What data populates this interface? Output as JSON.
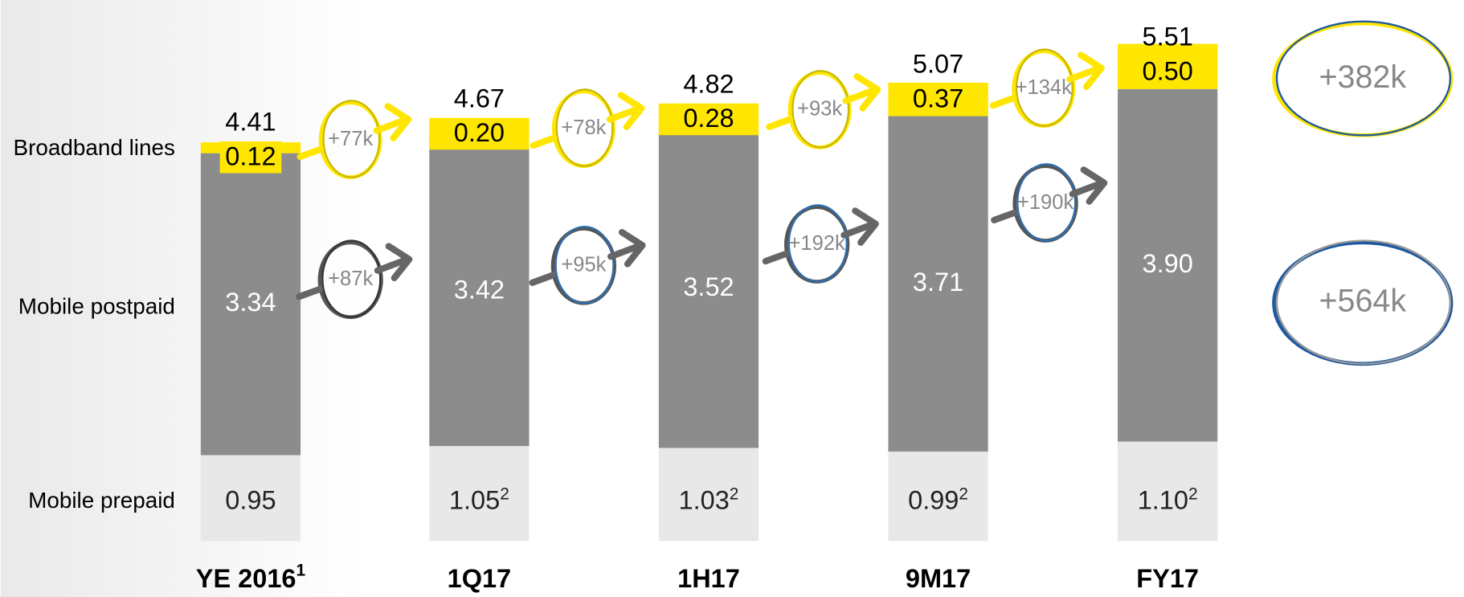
{
  "chart_data": {
    "type": "bar",
    "stacked": true,
    "categories": [
      "YE 2016",
      "1Q17",
      "1H17",
      "9M17",
      "FY17"
    ],
    "category_footnotes": [
      "1",
      null,
      null,
      null,
      null
    ],
    "series": [
      {
        "name": "Mobile prepaid",
        "color": "#e8e8e8",
        "values": [
          0.95,
          1.05,
          1.03,
          0.99,
          1.1
        ],
        "value_labels": [
          "0.95",
          "1.05",
          "1.03",
          "0.99",
          "1.10"
        ],
        "footnotes": [
          null,
          "2",
          "2",
          "2",
          "2"
        ]
      },
      {
        "name": "Mobile postpaid",
        "color": "#8c8c8c",
        "values": [
          3.34,
          3.42,
          3.52,
          3.71,
          3.9
        ],
        "value_labels": [
          "3.34",
          "3.42",
          "3.52",
          "3.71",
          "3.90"
        ]
      },
      {
        "name": "Broadband lines",
        "color": "#ffe600",
        "values": [
          0.12,
          0.2,
          0.28,
          0.37,
          0.5
        ],
        "value_labels": [
          "0.12",
          "0.20",
          "0.28",
          "0.37",
          "0.50"
        ]
      }
    ],
    "totals": [
      4.41,
      4.67,
      4.82,
      5.07,
      5.51
    ],
    "annotations": {
      "broadband_increments": [
        "+77k",
        "+78k",
        "+93k",
        "+134k"
      ],
      "postpaid_increments": [
        "+87k",
        "+95k",
        "+192k",
        "+190k"
      ],
      "total_increments": [
        "+382k",
        "+564k"
      ]
    }
  }
}
